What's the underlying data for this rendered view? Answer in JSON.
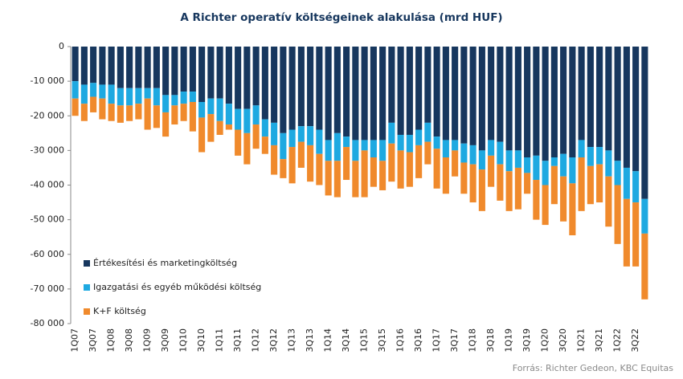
{
  "chart_data": {
    "type": "stacked_bar",
    "title": "A Richter operatív költségeinek alakulása (mrd HUF)",
    "source": "Forrás: Richter Gedeon, KBC Equitas",
    "categories": [
      "1Q07",
      null,
      "3Q07",
      null,
      "1Q08",
      null,
      "3Q08",
      null,
      "1Q09",
      null,
      "3Q09",
      null,
      "1Q10",
      null,
      "3Q10",
      null,
      "1Q11",
      null,
      "3Q11",
      null,
      "1Q12",
      null,
      "3Q12",
      null,
      "1Q13",
      null,
      "3Q13",
      null,
      "1Q14",
      null,
      "3Q14",
      null,
      "1Q15",
      null,
      "3Q15",
      null,
      "1Q16",
      null,
      "3Q16",
      null,
      "1Q17",
      null,
      "3Q17",
      null,
      "1Q18",
      null,
      "3Q18",
      null,
      "1Q19",
      null,
      "3Q19",
      null,
      "1Q20",
      null,
      "3Q20",
      null,
      "1Q21",
      null,
      "3Q21",
      null,
      "1Q22",
      null,
      "3Q22",
      null
    ],
    "series": [
      {
        "name": "Értékesítési és marketingköltség",
        "color": "#17375e",
        "values": [
          -10000,
          -11000,
          -10500,
          -11000,
          -11000,
          -12000,
          -12000,
          -12000,
          -12000,
          -12000,
          -14000,
          -14000,
          -13000,
          -13000,
          -16000,
          -15000,
          -15000,
          -16500,
          -18000,
          -18000,
          -17000,
          -21000,
          -22000,
          -25000,
          -24000,
          -23000,
          -23000,
          -24000,
          -27000,
          -25000,
          -26000,
          -27000,
          -27000,
          -27000,
          -27000,
          -22000,
          -25500,
          -25500,
          -24000,
          -22000,
          -26000,
          -27000,
          -27000,
          -28000,
          -28500,
          -30000,
          -27000,
          -27500,
          -30000,
          -30000,
          -32000,
          -31500,
          -33000,
          -32000,
          -31000,
          -32000,
          -27000,
          -29000,
          -29000,
          -30000,
          -33000,
          -35000,
          -36000,
          -44000
        ]
      },
      {
        "name": "Igazgatási és egyéb működési költség",
        "color": "#1ea9e1",
        "values": [
          -5000,
          -5500,
          -4000,
          -4000,
          -5500,
          -5000,
          -5000,
          -4500,
          -3000,
          -5000,
          -5000,
          -3000,
          -3500,
          -3000,
          -4500,
          -4500,
          -6500,
          -6000,
          -6000,
          -7000,
          -5500,
          -5000,
          -6500,
          -7500,
          -5000,
          -4500,
          -5500,
          -7000,
          -6000,
          -8000,
          -3000,
          -6000,
          -3000,
          -5000,
          -6000,
          -6000,
          -4500,
          -5000,
          -4500,
          -5500,
          -3500,
          -5000,
          -3000,
          -5500,
          -5500,
          -5500,
          -4500,
          -6500,
          -6000,
          -5000,
          -4500,
          -7000,
          -7000,
          -2500,
          -6500,
          -7500,
          -5000,
          -5500,
          -5000,
          -7500,
          -7000,
          -9000,
          -9000,
          -10000
        ]
      },
      {
        "name": "K+F költség",
        "color": "#f08a2c",
        "values": [
          -5000,
          -5000,
          -4500,
          -6000,
          -5000,
          -5000,
          -4500,
          -4500,
          -9000,
          -6500,
          -7000,
          -5500,
          -5000,
          -8500,
          -10000,
          -8000,
          -4000,
          -1500,
          -7500,
          -9000,
          -7000,
          -5000,
          -8500,
          -5500,
          -10500,
          -7500,
          -10500,
          -9000,
          -10000,
          -10500,
          -9500,
          -10500,
          -13500,
          -8500,
          -8500,
          -11000,
          -11000,
          -10000,
          -9500,
          -6500,
          -11500,
          -10500,
          -7500,
          -9000,
          -11000,
          -12000,
          -9000,
          -10500,
          -11500,
          -12000,
          -6000,
          -11500,
          -11500,
          -11000,
          -13000,
          -15000,
          -15500,
          -11000,
          -11000,
          -14500,
          -17000,
          -19500,
          -18500,
          -19000
        ]
      }
    ],
    "ylim": [
      -80000,
      0
    ],
    "yticks": [
      {
        "value": -80000,
        "label": "-80 000"
      },
      {
        "value": -70000,
        "label": "-70 000"
      },
      {
        "value": -60000,
        "label": "-60 000"
      },
      {
        "value": -50000,
        "label": "-50 000"
      },
      {
        "value": -40000,
        "label": "-40 000"
      },
      {
        "value": -30000,
        "label": "-30 000"
      },
      {
        "value": -20000,
        "label": "-20 000"
      },
      {
        "value": -10000,
        "label": "-10 000"
      },
      0
    ],
    "grid": false,
    "legend": "left"
  }
}
